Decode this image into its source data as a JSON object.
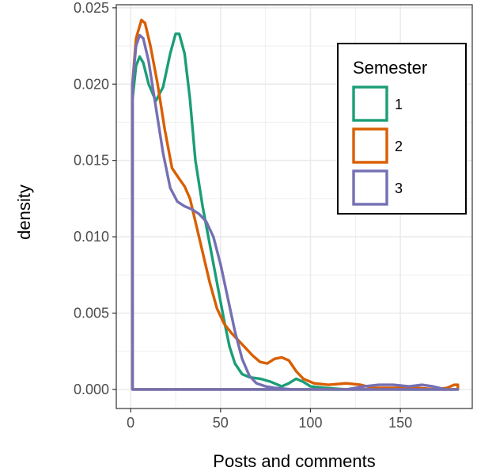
{
  "chart_data": {
    "type": "line",
    "subtype": "density",
    "xlabel": "Posts and comments",
    "ylabel": "density",
    "xlim": [
      -8,
      190
    ],
    "ylim": [
      -0.00125,
      0.0252
    ],
    "x_ticks": [
      0,
      50,
      100,
      150
    ],
    "x_tick_labels": [
      "0",
      "50",
      "100",
      "150"
    ],
    "y_ticks": [
      0,
      0.005,
      0.01,
      0.015,
      0.02,
      0.025
    ],
    "y_tick_labels": [
      "0.000",
      "0.005",
      "0.010",
      "0.015",
      "0.020",
      "0.025"
    ],
    "grid": true,
    "legend": {
      "title": "Semester",
      "position": "top-right",
      "entries": [
        "1",
        "2",
        "3"
      ]
    },
    "series": [
      {
        "name": "1",
        "color": "#1b9e77",
        "points": [
          [
            1,
            0.019
          ],
          [
            3,
            0.0212
          ],
          [
            5,
            0.0218
          ],
          [
            7,
            0.0214
          ],
          [
            10,
            0.02
          ],
          [
            14,
            0.0189
          ],
          [
            18,
            0.0198
          ],
          [
            22,
            0.022
          ],
          [
            25,
            0.0233
          ],
          [
            27,
            0.0233
          ],
          [
            30,
            0.022
          ],
          [
            33,
            0.019
          ],
          [
            36,
            0.015
          ],
          [
            40,
            0.012
          ],
          [
            44,
            0.0095
          ],
          [
            48,
            0.007
          ],
          [
            52,
            0.0045
          ],
          [
            55,
            0.0028
          ],
          [
            58,
            0.0017
          ],
          [
            62,
            0.001
          ],
          [
            66,
            0.0008
          ],
          [
            72,
            0.0007
          ],
          [
            78,
            0.0005
          ],
          [
            84,
            0.0002
          ],
          [
            88,
            0.0004
          ],
          [
            92,
            0.0007
          ],
          [
            96,
            0.0005
          ],
          [
            100,
            0.0002
          ],
          [
            108,
            0.0001
          ],
          [
            120,
            0.0
          ],
          [
            140,
            0.0
          ],
          [
            160,
            0.0
          ],
          [
            182,
            0.0
          ]
        ]
      },
      {
        "name": "2",
        "color": "#d95f02",
        "points": [
          [
            1,
            0.02
          ],
          [
            3,
            0.023
          ],
          [
            6,
            0.0242
          ],
          [
            8,
            0.024
          ],
          [
            11,
            0.0225
          ],
          [
            15,
            0.02
          ],
          [
            19,
            0.017
          ],
          [
            23,
            0.0145
          ],
          [
            27,
            0.0138
          ],
          [
            30,
            0.0133
          ],
          [
            33,
            0.0125
          ],
          [
            36,
            0.011
          ],
          [
            40,
            0.009
          ],
          [
            44,
            0.007
          ],
          [
            48,
            0.0053
          ],
          [
            52,
            0.0043
          ],
          [
            56,
            0.0037
          ],
          [
            60,
            0.0032
          ],
          [
            64,
            0.0027
          ],
          [
            68,
            0.0022
          ],
          [
            72,
            0.0018
          ],
          [
            76,
            0.0017
          ],
          [
            80,
            0.002
          ],
          [
            84,
            0.0021
          ],
          [
            88,
            0.0019
          ],
          [
            92,
            0.0012
          ],
          [
            96,
            0.0007
          ],
          [
            102,
            0.0004
          ],
          [
            110,
            0.0003
          ],
          [
            120,
            0.0004
          ],
          [
            128,
            0.0003
          ],
          [
            135,
            0.0001
          ],
          [
            145,
            0.0001
          ],
          [
            160,
            0.0001
          ],
          [
            170,
            0.0
          ],
          [
            176,
            0.0001
          ],
          [
            180,
            0.0003
          ],
          [
            182,
            0.0003
          ]
        ]
      },
      {
        "name": "3",
        "color": "#7570b3",
        "points": [
          [
            1,
            0.02
          ],
          [
            3,
            0.0225
          ],
          [
            5,
            0.0232
          ],
          [
            7,
            0.023
          ],
          [
            10,
            0.0215
          ],
          [
            14,
            0.0185
          ],
          [
            18,
            0.0155
          ],
          [
            22,
            0.0132
          ],
          [
            26,
            0.0123
          ],
          [
            30,
            0.012
          ],
          [
            34,
            0.0118
          ],
          [
            38,
            0.0115
          ],
          [
            42,
            0.011
          ],
          [
            46,
            0.01
          ],
          [
            50,
            0.0082
          ],
          [
            54,
            0.006
          ],
          [
            58,
            0.0038
          ],
          [
            62,
            0.002
          ],
          [
            66,
            0.0009
          ],
          [
            70,
            0.0004
          ],
          [
            75,
            0.0002
          ],
          [
            80,
            0.0001
          ],
          [
            90,
            0.0
          ],
          [
            100,
            0.0
          ],
          [
            110,
            0.0
          ],
          [
            120,
            0.0
          ],
          [
            130,
            0.0002
          ],
          [
            138,
            0.0003
          ],
          [
            146,
            0.0003
          ],
          [
            155,
            0.0002
          ],
          [
            162,
            0.0003
          ],
          [
            168,
            0.0002
          ],
          [
            175,
            0.0
          ],
          [
            182,
            0.0
          ]
        ]
      }
    ]
  }
}
